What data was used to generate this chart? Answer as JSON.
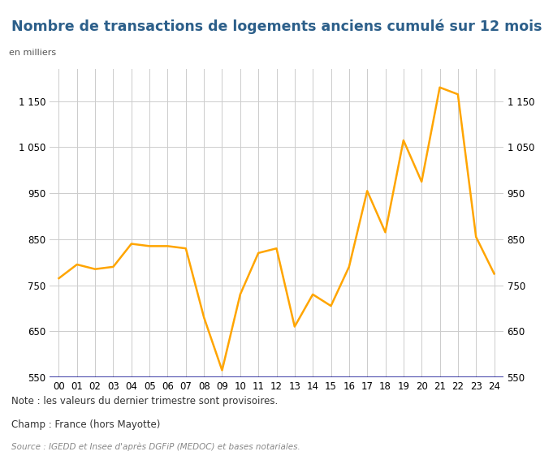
{
  "title": "Nombre de transactions de logements anciens cumulé sur 12 mois",
  "ylabel_left": "en milliers",
  "x_labels": [
    "00",
    "01",
    "02",
    "03",
    "04",
    "05",
    "06",
    "07",
    "08",
    "09",
    "10",
    "11",
    "12",
    "13",
    "14",
    "15",
    "16",
    "17",
    "18",
    "19",
    "20",
    "21",
    "22",
    "23",
    "24"
  ],
  "x_values": [
    0,
    1,
    2,
    3,
    4,
    5,
    6,
    7,
    8,
    9,
    10,
    11,
    12,
    13,
    14,
    15,
    16,
    17,
    18,
    19,
    20,
    21,
    22,
    23,
    24
  ],
  "y_values": [
    765,
    795,
    785,
    790,
    840,
    835,
    835,
    830,
    680,
    565,
    730,
    820,
    830,
    660,
    730,
    705,
    790,
    955,
    865,
    1065,
    975,
    1180,
    1165,
    855,
    775
  ],
  "line_color": "#FFA500",
  "line_width": 1.8,
  "ylim": [
    550,
    1220
  ],
  "yticks": [
    550,
    650,
    750,
    850,
    950,
    1050,
    1150
  ],
  "grid_color": "#cccccc",
  "bg_color": "#ffffff",
  "title_color": "#2c5f8a",
  "title_bg_color": "#e8eef4",
  "note_text": "Note : les valeurs du dernier trimestre sont provisoires.",
  "champ_text": "Champ : France (hors Mayotte)",
  "source_text": "Source : IGEDD et Insee d'après DGFiP (MEDOC) et bases notariales.",
  "note_color": "#333333",
  "champ_color": "#333333",
  "source_color": "#888888",
  "hline_color": "#00008B",
  "hline_y": 550,
  "right_yticks": [
    550,
    650,
    750,
    850,
    950,
    1050,
    1150
  ]
}
